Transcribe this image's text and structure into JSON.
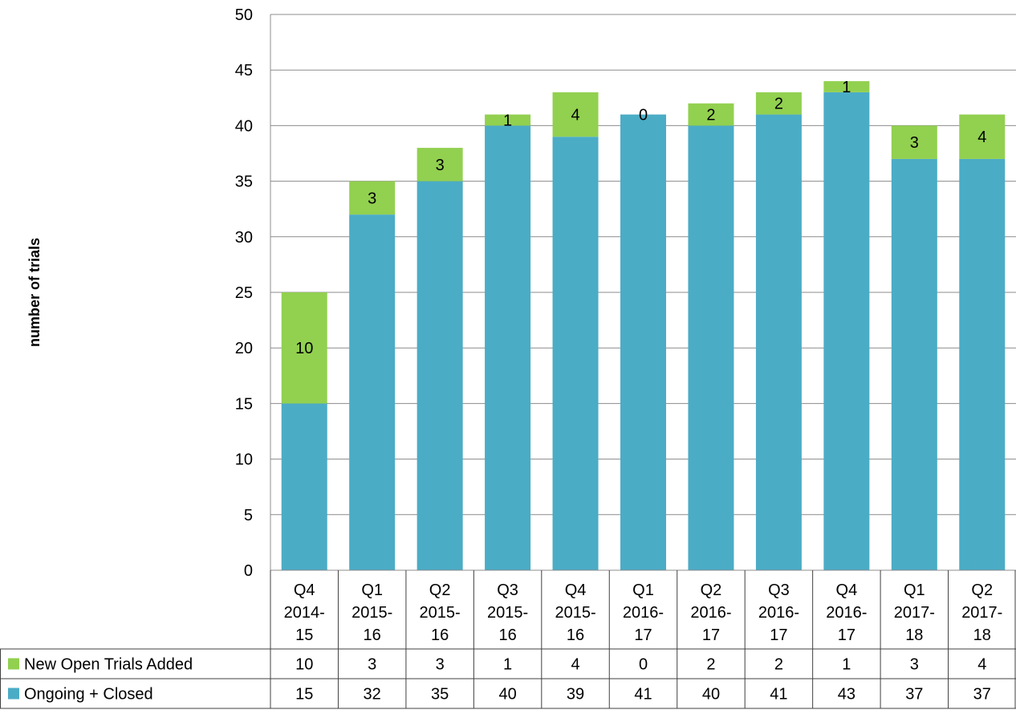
{
  "chart_data": {
    "type": "bar",
    "stacked": true,
    "ylabel": "number of trials",
    "ylim": [
      0,
      50
    ],
    "yticks": [
      0,
      5,
      10,
      15,
      20,
      25,
      30,
      35,
      40,
      45,
      50
    ],
    "grid": true,
    "legend_placement": "data-table-below",
    "categories": [
      [
        "Q4",
        "2014-",
        "15"
      ],
      [
        "Q1",
        "2015-",
        "16"
      ],
      [
        "Q2",
        "2015-",
        "16"
      ],
      [
        "Q3",
        "2015-",
        "16"
      ],
      [
        "Q4",
        "2015-",
        "16"
      ],
      [
        "Q1",
        "2016-",
        "17"
      ],
      [
        "Q2",
        "2016-",
        "17"
      ],
      [
        "Q3",
        "2016-",
        "17"
      ],
      [
        "Q4",
        "2016-",
        "17"
      ],
      [
        "Q1",
        "2017-",
        "18"
      ],
      [
        "Q2",
        "2017-",
        "18"
      ]
    ],
    "series": [
      {
        "name": "Ongoing + Closed",
        "color": "#4bacc6",
        "values": [
          15,
          32,
          35,
          40,
          39,
          41,
          40,
          41,
          43,
          37,
          37
        ],
        "data_labels": false
      },
      {
        "name": "New Open Trials Added",
        "color": "#92d050",
        "values": [
          10,
          3,
          3,
          1,
          4,
          0,
          2,
          2,
          1,
          3,
          4
        ],
        "data_labels": true
      }
    ],
    "table_rows": [
      {
        "name": "New Open Trials Added",
        "color": "#92d050",
        "values": [
          10,
          3,
          3,
          1,
          4,
          0,
          2,
          2,
          1,
          3,
          4
        ]
      },
      {
        "name": "Ongoing + Closed",
        "color": "#4bacc6",
        "values": [
          15,
          32,
          35,
          40,
          39,
          41,
          40,
          41,
          43,
          37,
          37
        ]
      }
    ]
  }
}
